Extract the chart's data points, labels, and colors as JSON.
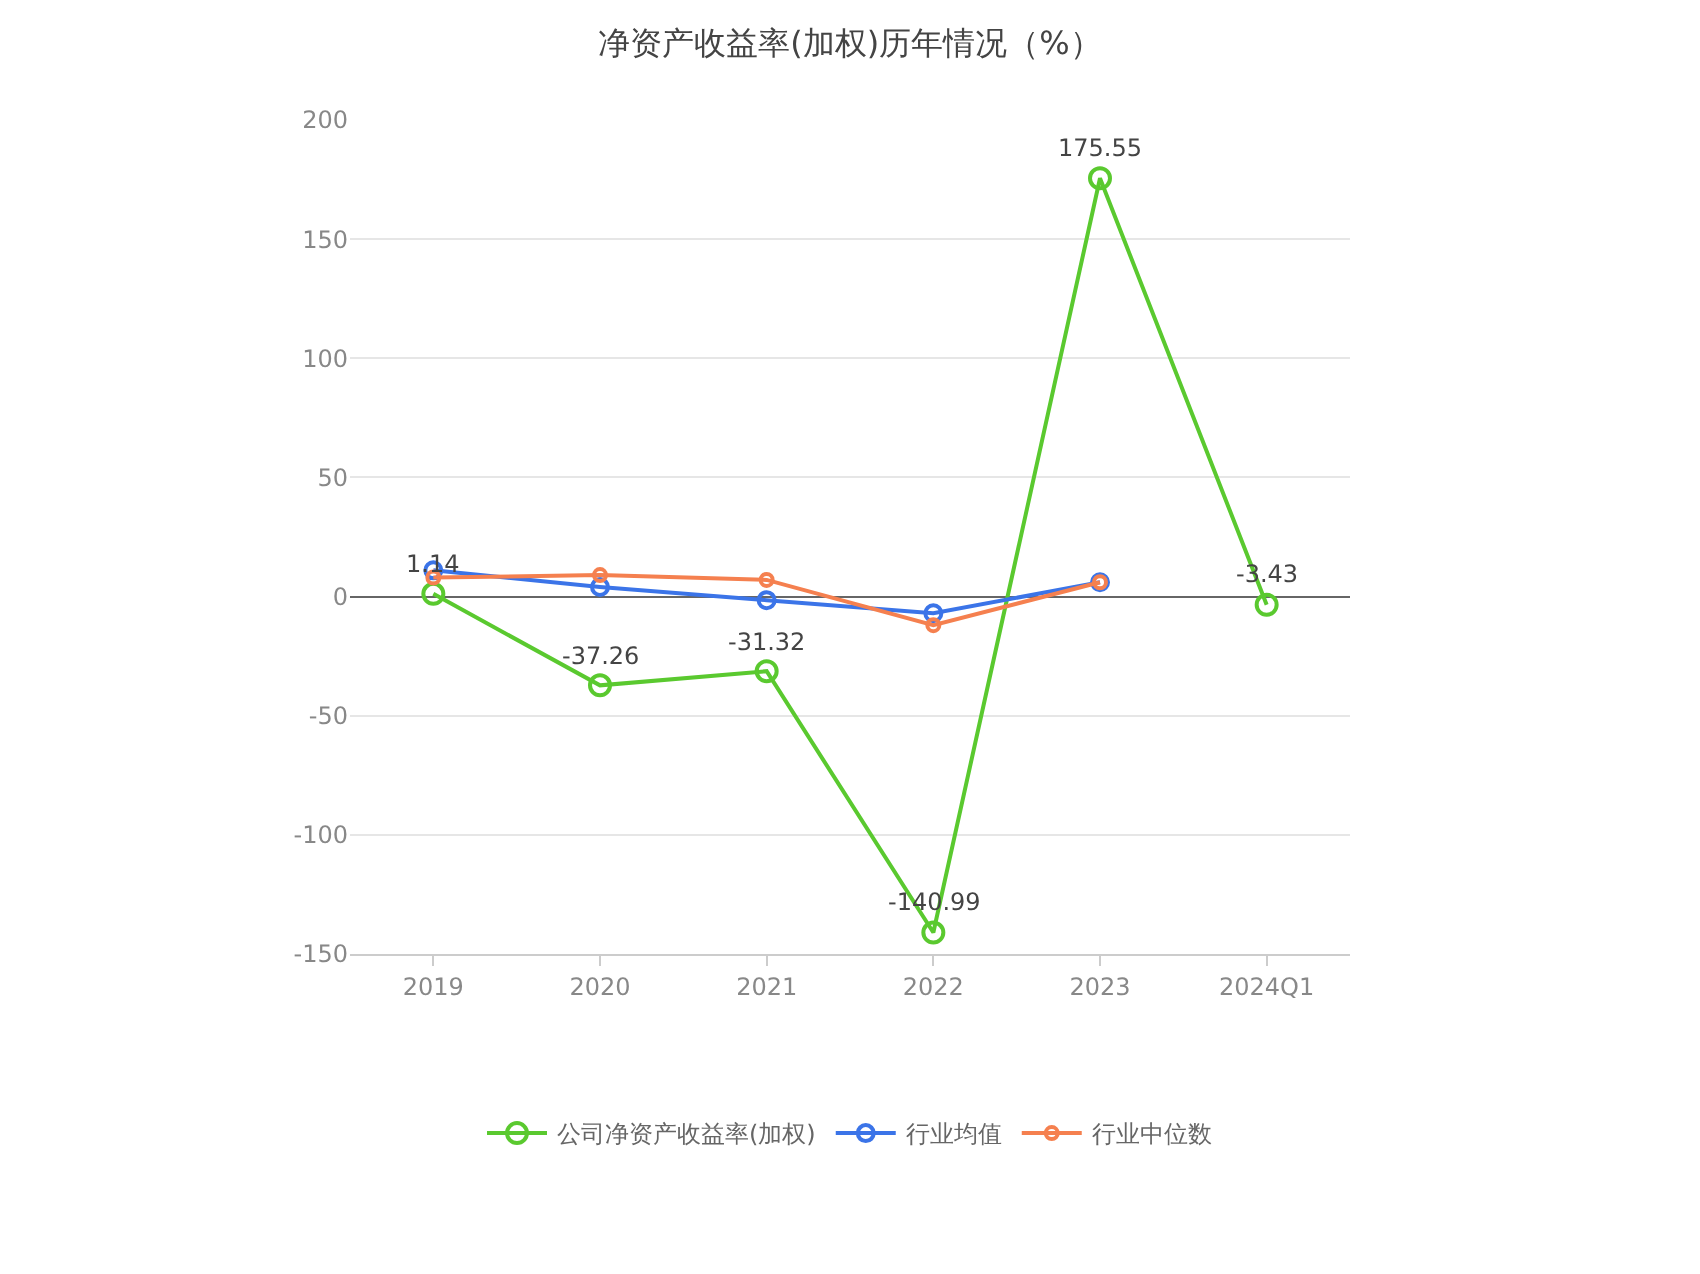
{
  "chart_data": {
    "type": "line",
    "title": "净资产收益率(加权)历年情况（%）",
    "categories": [
      "2019",
      "2020",
      "2021",
      "2022",
      "2023",
      "2024Q1"
    ],
    "series": [
      {
        "name": "公司净资产收益率(加权)",
        "color": "#5ac92f",
        "values": [
          1.14,
          -37.26,
          -31.32,
          -140.99,
          175.55,
          -3.43
        ],
        "value_labels": [
          "1.14",
          "-37.26",
          "-31.32",
          "-140.99",
          "175.55",
          "-3.43"
        ]
      },
      {
        "name": "行业均值",
        "color": "#3b74e8",
        "values": [
          11,
          4,
          -1.5,
          -7,
          6,
          null
        ]
      },
      {
        "name": "行业中位数",
        "color": "#f5804f",
        "values": [
          8,
          9,
          7,
          -12,
          6,
          null
        ]
      }
    ],
    "ylim": [
      -150,
      200
    ],
    "yticks": [
      -150,
      -100,
      -50,
      0,
      50,
      100,
      150,
      200
    ],
    "grid": "y",
    "legend": "bottom",
    "marker": "circle",
    "line_style": "solid"
  }
}
